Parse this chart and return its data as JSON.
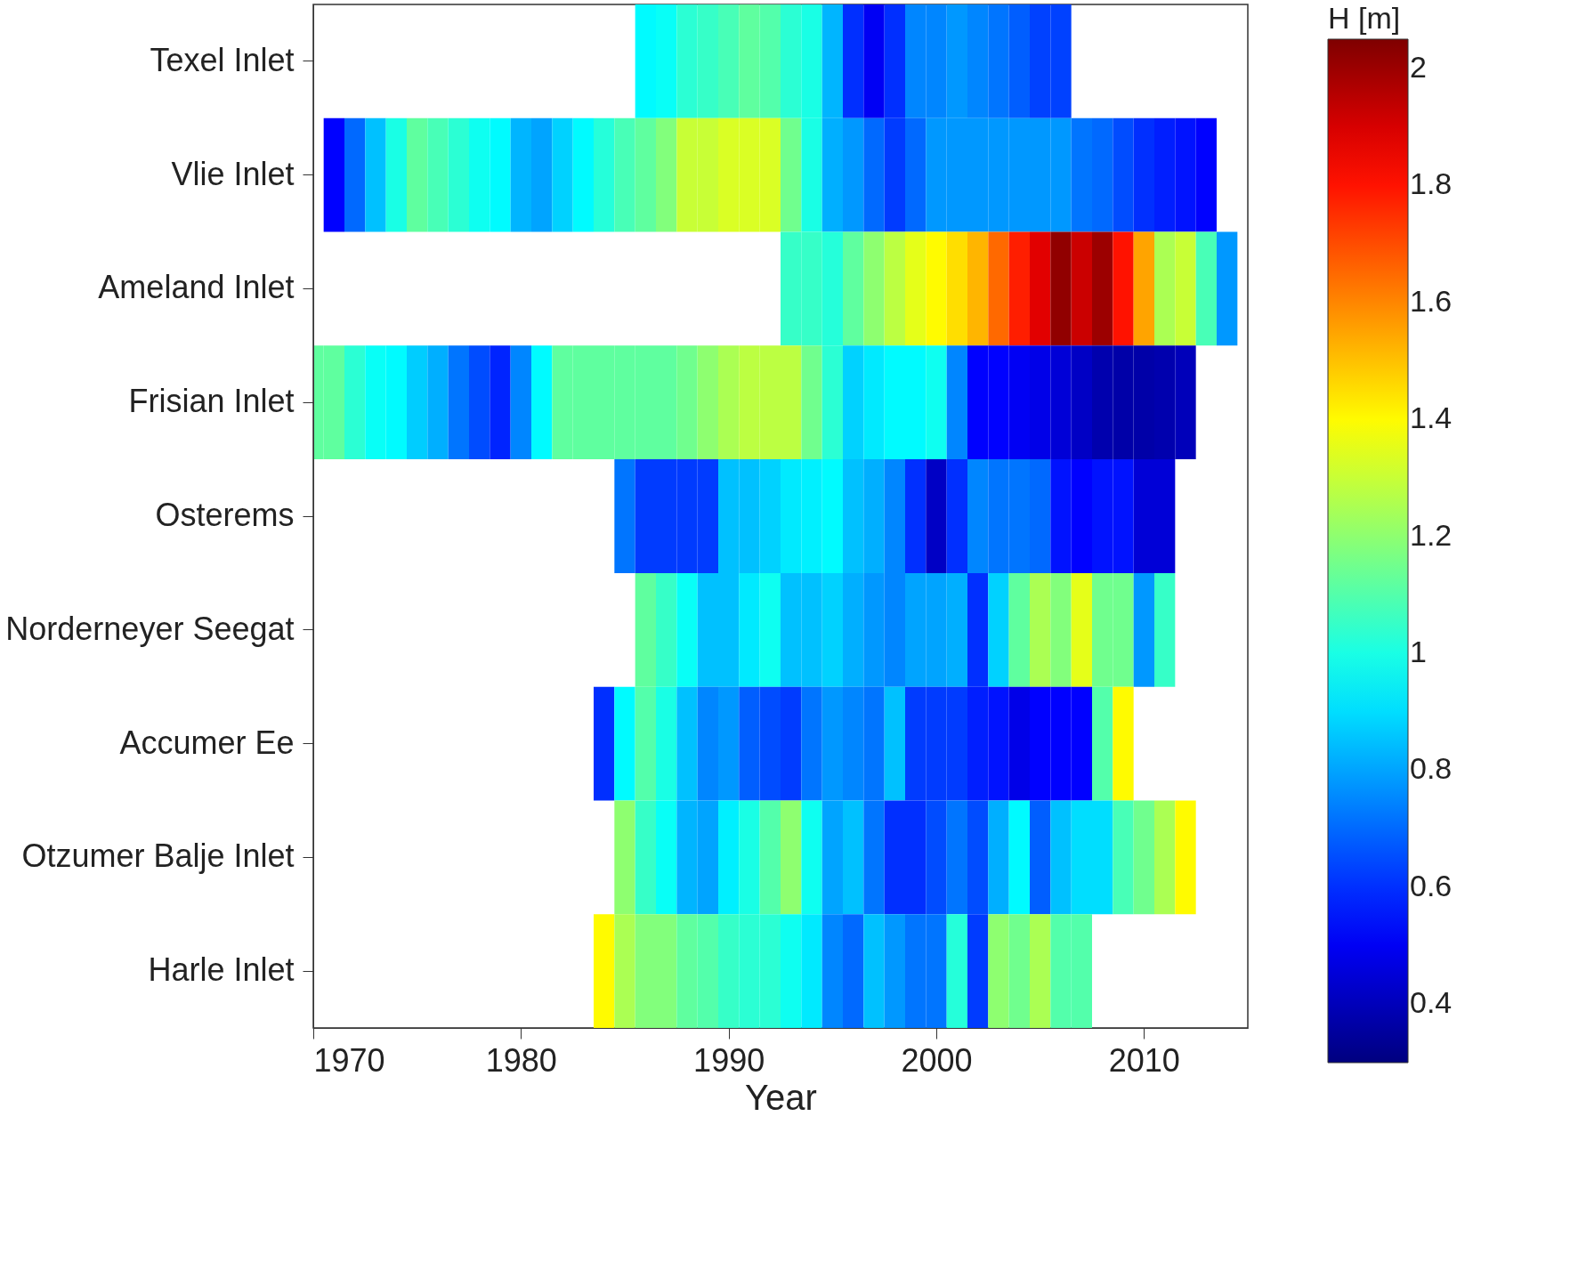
{
  "chart_data": {
    "type": "heatmap",
    "xlabel": "Year",
    "clabel": "H [m]",
    "x": [
      1970,
      1971,
      1972,
      1973,
      1974,
      1975,
      1976,
      1977,
      1978,
      1979,
      1980,
      1981,
      1982,
      1983,
      1984,
      1985,
      1986,
      1987,
      1988,
      1989,
      1990,
      1991,
      1992,
      1993,
      1994,
      1995,
      1996,
      1997,
      1998,
      1999,
      2000,
      2001,
      2002,
      2003,
      2004,
      2005,
      2006,
      2007,
      2008,
      2009,
      2010,
      2011,
      2012,
      2013,
      2014
    ],
    "xlim": [
      1970,
      2015
    ],
    "xticks": [
      1970,
      1980,
      1990,
      2000,
      2010
    ],
    "y_categories": [
      "Texel Inlet",
      "Vlie Inlet",
      "Ameland Inlet",
      "Frisian Inlet",
      "Osterems",
      "Norderneyer Seegat",
      "Accumer Ee",
      "Otzumer Balje Inlet",
      "Harle Inlet"
    ],
    "cells": [
      [
        null,
        null,
        null,
        null,
        null,
        null,
        null,
        null,
        null,
        null,
        null,
        null,
        null,
        null,
        null,
        null,
        0.95,
        0.97,
        1.03,
        1.05,
        1.08,
        1.12,
        1.1,
        1.03,
        1.0,
        0.83,
        0.6,
        0.5,
        0.6,
        0.75,
        0.75,
        0.78,
        0.75,
        0.72,
        0.68,
        0.63,
        0.63,
        null,
        null,
        null,
        null,
        null,
        null,
        null,
        null
      ],
      [
        null,
        0.52,
        0.7,
        0.85,
        1.0,
        1.12,
        1.08,
        1.03,
        0.98,
        0.95,
        0.83,
        0.8,
        0.88,
        0.95,
        1.02,
        1.08,
        1.12,
        1.18,
        1.3,
        1.3,
        1.33,
        1.33,
        1.33,
        1.15,
        1.0,
        0.82,
        0.78,
        0.7,
        0.62,
        0.7,
        0.78,
        0.78,
        0.78,
        0.78,
        0.78,
        0.78,
        0.78,
        0.72,
        0.7,
        0.65,
        0.6,
        0.57,
        0.55,
        0.52,
        null
      ],
      [
        null,
        null,
        null,
        null,
        null,
        null,
        null,
        null,
        null,
        null,
        null,
        null,
        null,
        null,
        null,
        null,
        null,
        null,
        null,
        null,
        null,
        null,
        null,
        1.05,
        1.05,
        1.02,
        1.12,
        1.2,
        1.28,
        1.35,
        1.4,
        1.45,
        1.52,
        1.65,
        1.78,
        1.88,
        2.02,
        1.92,
        2.0,
        1.8,
        1.55,
        1.25,
        1.3,
        1.08,
        0.78
      ],
      [
        1.12,
        1.12,
        1.03,
        0.97,
        0.95,
        0.87,
        0.82,
        0.72,
        0.65,
        0.58,
        0.75,
        0.95,
        1.12,
        1.12,
        1.12,
        1.12,
        1.12,
        1.12,
        1.15,
        1.2,
        1.25,
        1.28,
        1.28,
        1.28,
        1.15,
        1.03,
        0.88,
        0.92,
        0.95,
        0.95,
        0.98,
        0.75,
        0.52,
        0.52,
        0.5,
        0.48,
        0.45,
        0.42,
        0.38,
        0.37,
        0.37,
        0.38,
        0.4,
        null,
        null
      ],
      [
        null,
        null,
        null,
        null,
        null,
        null,
        null,
        null,
        null,
        null,
        null,
        null,
        null,
        null,
        null,
        0.72,
        0.62,
        0.62,
        0.62,
        0.62,
        0.85,
        0.85,
        0.88,
        0.92,
        0.93,
        0.95,
        0.85,
        0.82,
        0.75,
        0.6,
        0.42,
        0.6,
        0.75,
        0.72,
        0.72,
        0.7,
        0.55,
        0.52,
        0.55,
        0.55,
        0.45,
        0.45,
        null,
        null,
        null
      ],
      [
        null,
        null,
        null,
        null,
        null,
        null,
        null,
        null,
        null,
        null,
        null,
        null,
        null,
        null,
        null,
        null,
        1.12,
        1.05,
        0.97,
        0.85,
        0.85,
        0.92,
        0.98,
        0.85,
        0.85,
        0.88,
        0.82,
        0.78,
        0.75,
        0.8,
        0.8,
        0.82,
        0.6,
        0.88,
        1.12,
        1.25,
        1.18,
        1.35,
        1.15,
        1.15,
        0.78,
        1.05,
        null,
        null,
        null
      ],
      [
        null,
        null,
        null,
        null,
        null,
        null,
        null,
        null,
        null,
        null,
        null,
        null,
        null,
        null,
        0.6,
        0.95,
        1.1,
        1.0,
        0.85,
        0.75,
        0.78,
        0.68,
        0.65,
        0.62,
        0.72,
        0.78,
        0.75,
        0.72,
        0.85,
        0.62,
        0.62,
        0.62,
        0.57,
        0.55,
        0.48,
        0.52,
        0.52,
        0.52,
        1.1,
        1.4,
        null,
        null,
        null,
        null,
        null
      ],
      [
        null,
        null,
        null,
        null,
        null,
        null,
        null,
        null,
        null,
        null,
        null,
        null,
        null,
        null,
        null,
        1.2,
        1.05,
        0.97,
        0.83,
        0.8,
        0.93,
        1.0,
        1.1,
        1.2,
        0.98,
        0.8,
        0.85,
        0.72,
        0.6,
        0.6,
        0.65,
        0.72,
        0.65,
        0.82,
        0.95,
        0.68,
        0.85,
        0.9,
        0.9,
        1.08,
        1.15,
        1.25,
        1.4,
        null,
        null
      ],
      [
        null,
        null,
        null,
        null,
        null,
        null,
        null,
        null,
        null,
        null,
        null,
        null,
        null,
        null,
        1.4,
        1.25,
        1.18,
        1.18,
        1.12,
        1.1,
        1.05,
        1.03,
        1.03,
        0.98,
        0.92,
        0.75,
        0.7,
        0.85,
        0.78,
        0.72,
        0.72,
        1.02,
        0.62,
        1.2,
        1.15,
        1.25,
        1.1,
        1.1,
        null,
        null,
        null,
        null,
        null,
        null,
        null
      ]
    ],
    "clim": [
      0.3,
      2.05
    ],
    "cticks": [
      0.4,
      0.6,
      0.8,
      1,
      1.2,
      1.4,
      1.6,
      1.8,
      2
    ],
    "grid": false
  }
}
